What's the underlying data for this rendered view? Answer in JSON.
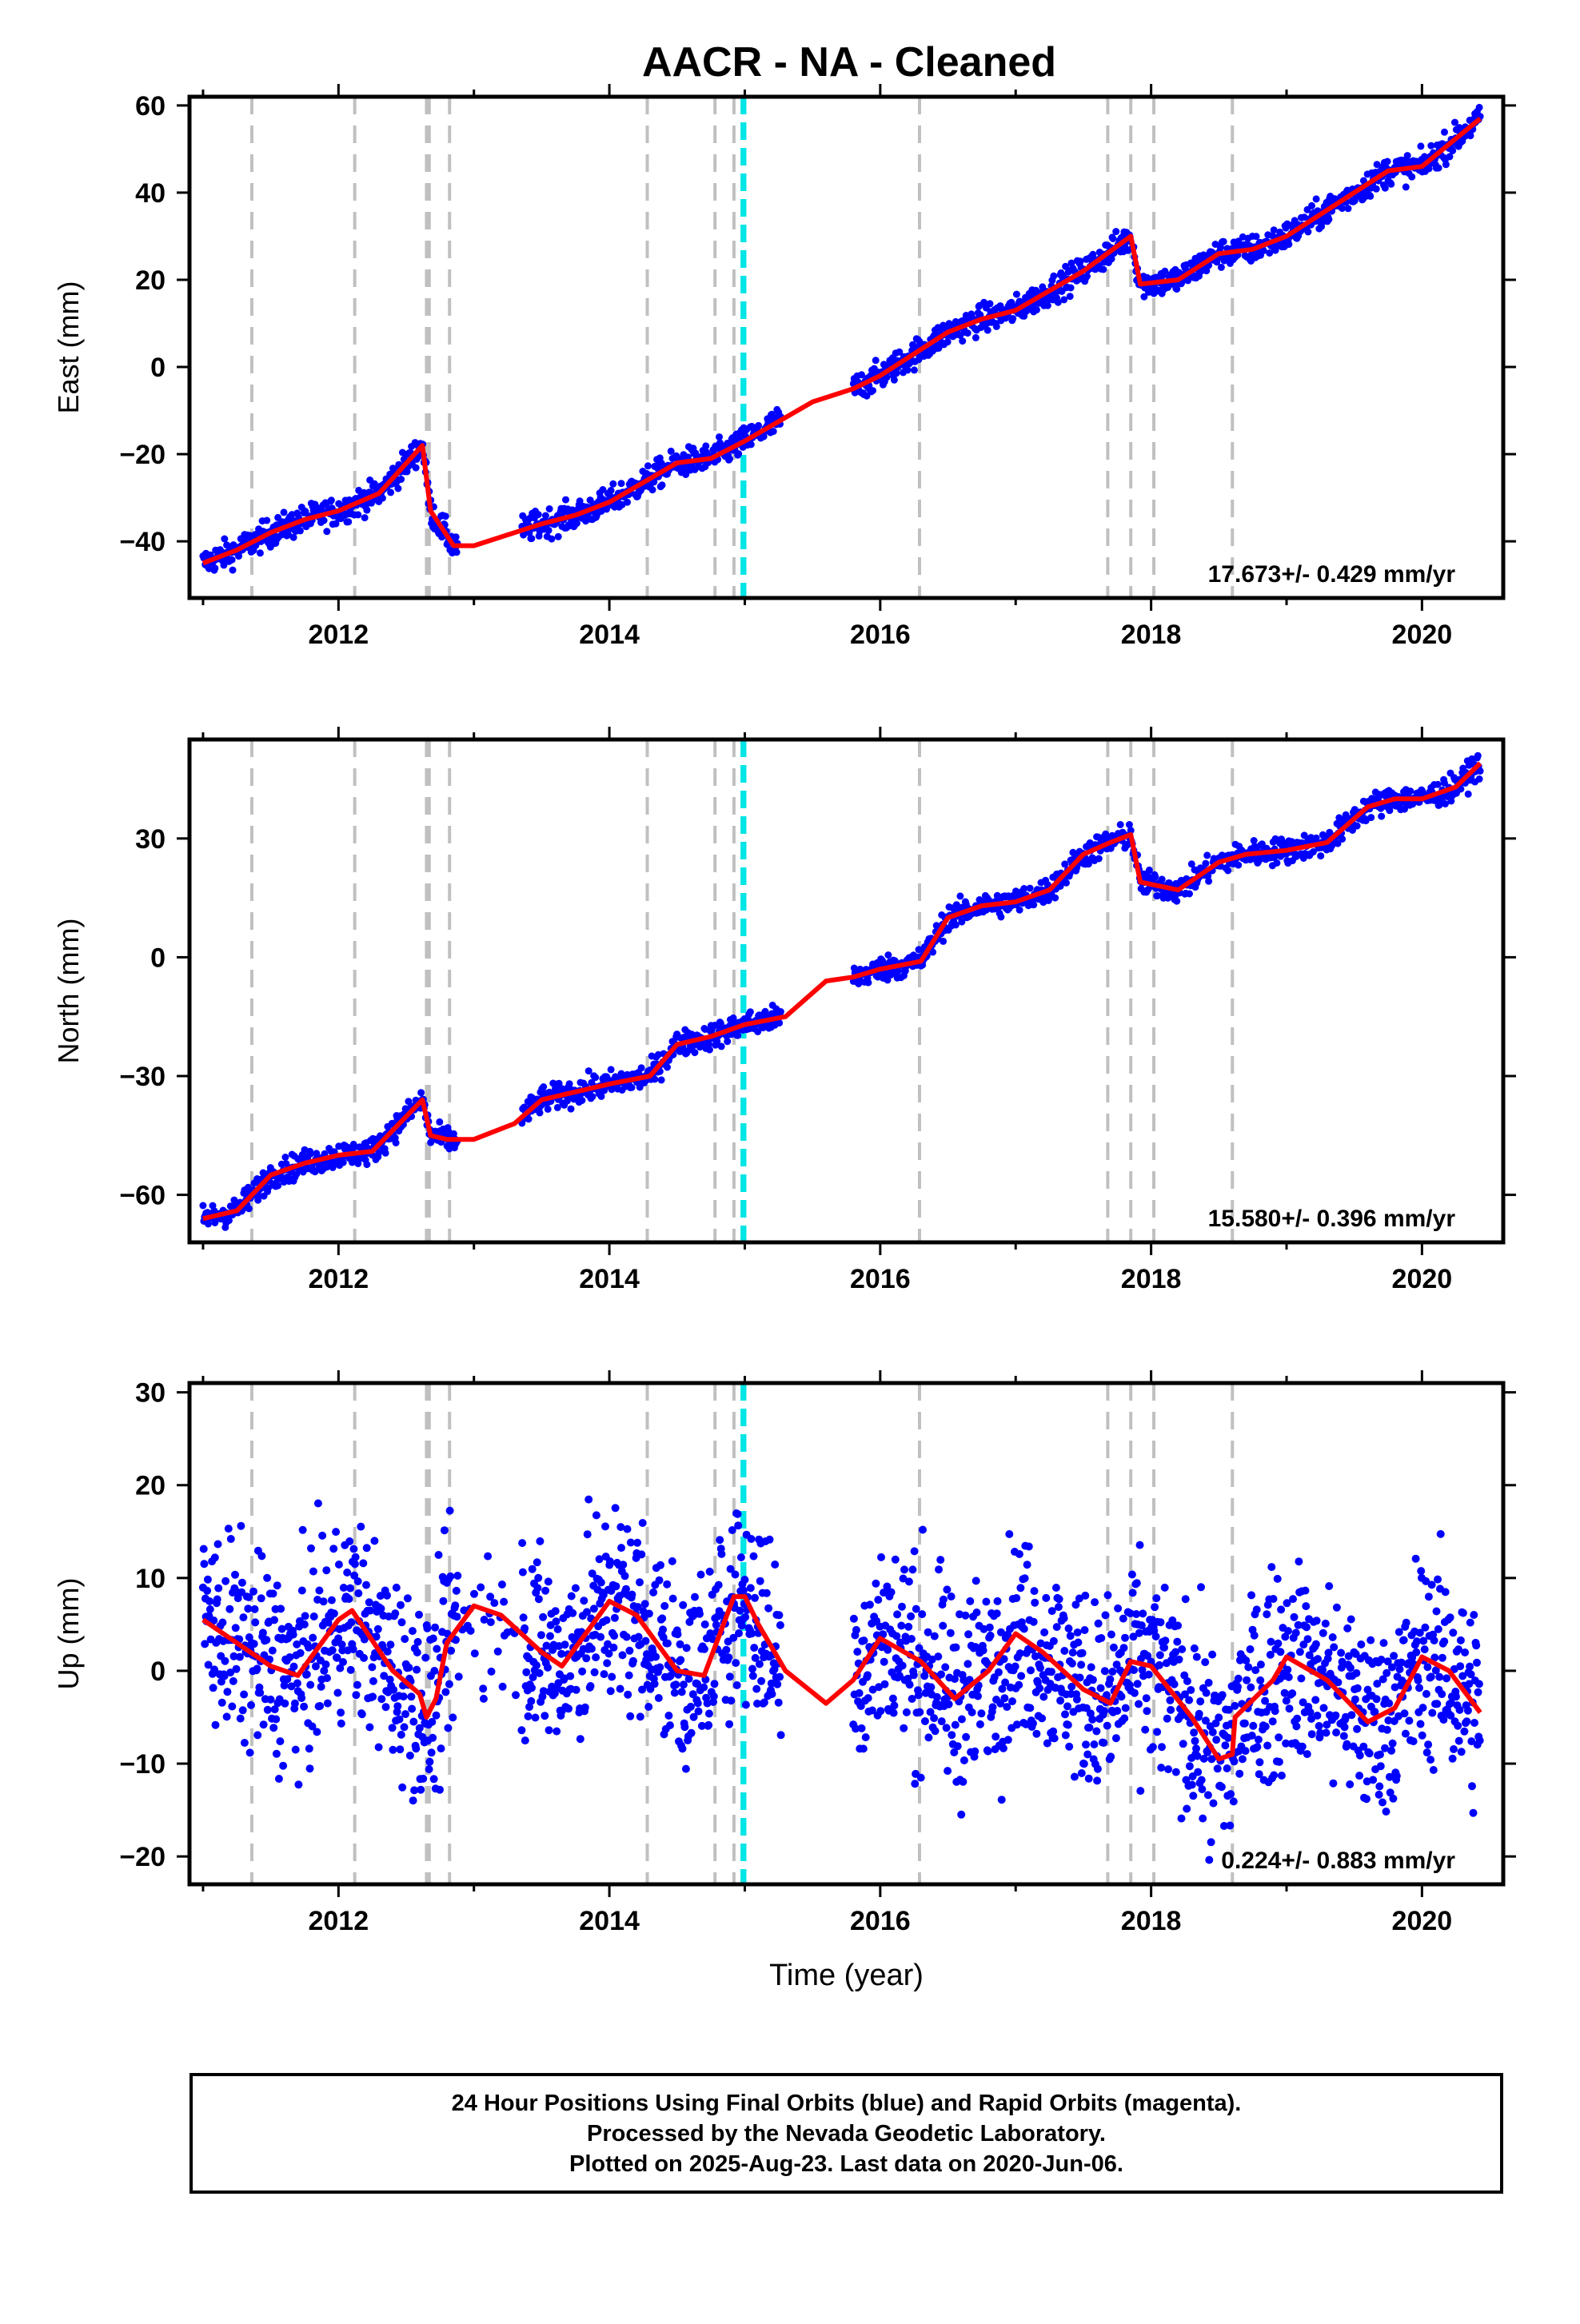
{
  "title": "AACR  - NA - Cleaned",
  "colors": {
    "final_orbits": "#0000ff",
    "model": "#ff0000",
    "event_line": "#c0c0c0",
    "highlight_line": "#00e5e5"
  },
  "chart_data": [
    {
      "type": "scatter",
      "ylabel": "East (mm)",
      "xlabel": "",
      "xlim": [
        2010.9,
        2020.6
      ],
      "ylim": [
        -53,
        62
      ],
      "x_ticks": [
        2012,
        2014,
        2016,
        2018,
        2020
      ],
      "y_ticks": [
        -40,
        -20,
        0,
        20,
        40,
        60
      ],
      "rate_text": "17.673+/- 0.429 mm/yr",
      "grid": false,
      "model_curve": [
        [
          2011.0,
          -45
        ],
        [
          2011.25,
          -42
        ],
        [
          2011.5,
          -38
        ],
        [
          2011.75,
          -35
        ],
        [
          2012.0,
          -33
        ],
        [
          2012.3,
          -29
        ],
        [
          2012.62,
          -18
        ],
        [
          2012.68,
          -33
        ],
        [
          2012.85,
          -41
        ],
        [
          2013.0,
          -41
        ],
        [
          2013.5,
          -36
        ],
        [
          2013.75,
          -34
        ],
        [
          2014.0,
          -31
        ],
        [
          2014.5,
          -22
        ],
        [
          2014.75,
          -21
        ],
        [
          2015.0,
          -17
        ],
        [
          2015.5,
          -8
        ],
        [
          2015.8,
          -5
        ],
        [
          2016.0,
          -2
        ],
        [
          2016.5,
          8
        ],
        [
          2016.75,
          11
        ],
        [
          2017.0,
          13
        ],
        [
          2017.5,
          22
        ],
        [
          2017.85,
          30
        ],
        [
          2017.92,
          19
        ],
        [
          2018.2,
          20
        ],
        [
          2018.5,
          26
        ],
        [
          2018.75,
          27
        ],
        [
          2019.0,
          30
        ],
        [
          2019.5,
          40
        ],
        [
          2019.75,
          45
        ],
        [
          2020.0,
          46
        ],
        [
          2020.43,
          57
        ]
      ]
    },
    {
      "type": "scatter",
      "ylabel": "North (mm)",
      "xlabel": "",
      "xlim": [
        2010.9,
        2020.6
      ],
      "ylim": [
        -72,
        55
      ],
      "x_ticks": [
        2012,
        2014,
        2016,
        2018,
        2020
      ],
      "y_ticks": [
        -60,
        -30,
        0,
        30
      ],
      "rate_text": "15.580+/- 0.396 mm/yr",
      "grid": false,
      "model_curve": [
        [
          2011.0,
          -66
        ],
        [
          2011.25,
          -64
        ],
        [
          2011.5,
          -55
        ],
        [
          2011.75,
          -52
        ],
        [
          2012.0,
          -50
        ],
        [
          2012.25,
          -49
        ],
        [
          2012.62,
          -36
        ],
        [
          2012.68,
          -45
        ],
        [
          2012.8,
          -46
        ],
        [
          2013.0,
          -46
        ],
        [
          2013.3,
          -42
        ],
        [
          2013.5,
          -36
        ],
        [
          2013.75,
          -34
        ],
        [
          2014.0,
          -32
        ],
        [
          2014.3,
          -30
        ],
        [
          2014.5,
          -22
        ],
        [
          2014.75,
          -20
        ],
        [
          2015.0,
          -17
        ],
        [
          2015.3,
          -15
        ],
        [
          2015.6,
          -6
        ],
        [
          2015.8,
          -5
        ],
        [
          2016.0,
          -3
        ],
        [
          2016.3,
          -1
        ],
        [
          2016.5,
          10
        ],
        [
          2016.75,
          13
        ],
        [
          2017.0,
          14
        ],
        [
          2017.25,
          17
        ],
        [
          2017.5,
          26
        ],
        [
          2017.7,
          29
        ],
        [
          2017.85,
          31
        ],
        [
          2017.92,
          19
        ],
        [
          2018.2,
          17
        ],
        [
          2018.5,
          24
        ],
        [
          2018.7,
          26
        ],
        [
          2019.0,
          27
        ],
        [
          2019.3,
          29
        ],
        [
          2019.6,
          38
        ],
        [
          2019.8,
          40
        ],
        [
          2020.0,
          40
        ],
        [
          2020.25,
          43
        ],
        [
          2020.43,
          49
        ]
      ]
    },
    {
      "type": "scatter",
      "ylabel": "Up (mm)",
      "xlabel": "Time (year)",
      "xlim": [
        2010.9,
        2020.6
      ],
      "ylim": [
        -23,
        31
      ],
      "x_ticks": [
        2012,
        2014,
        2016,
        2018,
        2020
      ],
      "y_ticks": [
        -20,
        -10,
        0,
        10,
        20,
        30
      ],
      "rate_text": "0.224+/- 0.883 mm/yr",
      "grid": false,
      "model_curve": [
        [
          2011.0,
          5.5
        ],
        [
          2011.2,
          3.5
        ],
        [
          2011.5,
          0.5
        ],
        [
          2011.7,
          -0.5
        ],
        [
          2012.0,
          5.5
        ],
        [
          2012.1,
          6.5
        ],
        [
          2012.4,
          0
        ],
        [
          2012.6,
          -2.5
        ],
        [
          2012.65,
          -5
        ],
        [
          2012.72,
          -3
        ],
        [
          2012.8,
          3
        ],
        [
          2013.0,
          7
        ],
        [
          2013.2,
          6
        ],
        [
          2013.5,
          2
        ],
        [
          2013.65,
          0.5
        ],
        [
          2014.0,
          7.5
        ],
        [
          2014.2,
          6
        ],
        [
          2014.5,
          0
        ],
        [
          2014.7,
          -0.5
        ],
        [
          2014.92,
          8
        ],
        [
          2015.0,
          8
        ],
        [
          2015.1,
          5
        ],
        [
          2015.3,
          0
        ],
        [
          2015.6,
          -3.5
        ],
        [
          2015.8,
          -1
        ],
        [
          2016.0,
          3.5
        ],
        [
          2016.3,
          1
        ],
        [
          2016.55,
          -3
        ],
        [
          2016.8,
          0
        ],
        [
          2017.0,
          4
        ],
        [
          2017.2,
          2
        ],
        [
          2017.5,
          -2
        ],
        [
          2017.7,
          -3.5
        ],
        [
          2017.85,
          1
        ],
        [
          2018.0,
          0.5
        ],
        [
          2018.3,
          -5
        ],
        [
          2018.5,
          -9.5
        ],
        [
          2018.6,
          -9
        ],
        [
          2018.62,
          -5
        ],
        [
          2018.9,
          -1
        ],
        [
          2019.0,
          1.5
        ],
        [
          2019.3,
          -1
        ],
        [
          2019.6,
          -5.5
        ],
        [
          2019.8,
          -4
        ],
        [
          2020.0,
          1.5
        ],
        [
          2020.2,
          0
        ],
        [
          2020.43,
          -4.5
        ]
      ]
    }
  ],
  "event_lines_x": [
    2011.36,
    2012.12,
    2012.65,
    2012.67,
    2012.82,
    2014.28,
    2014.78,
    2014.92,
    2016.29,
    2017.68,
    2017.85,
    2018.02,
    2018.6
  ],
  "highlight_lines_x": [
    2014.98,
    2015.0
  ],
  "footer": {
    "line1": "24 Hour Positions Using Final Orbits (blue) and Rapid Orbits (magenta).",
    "line2": "Processed by the Nevada Geodetic Laboratory.",
    "line3": "Plotted on 2025-Aug-23. Last data on 2020-Jun-06."
  }
}
